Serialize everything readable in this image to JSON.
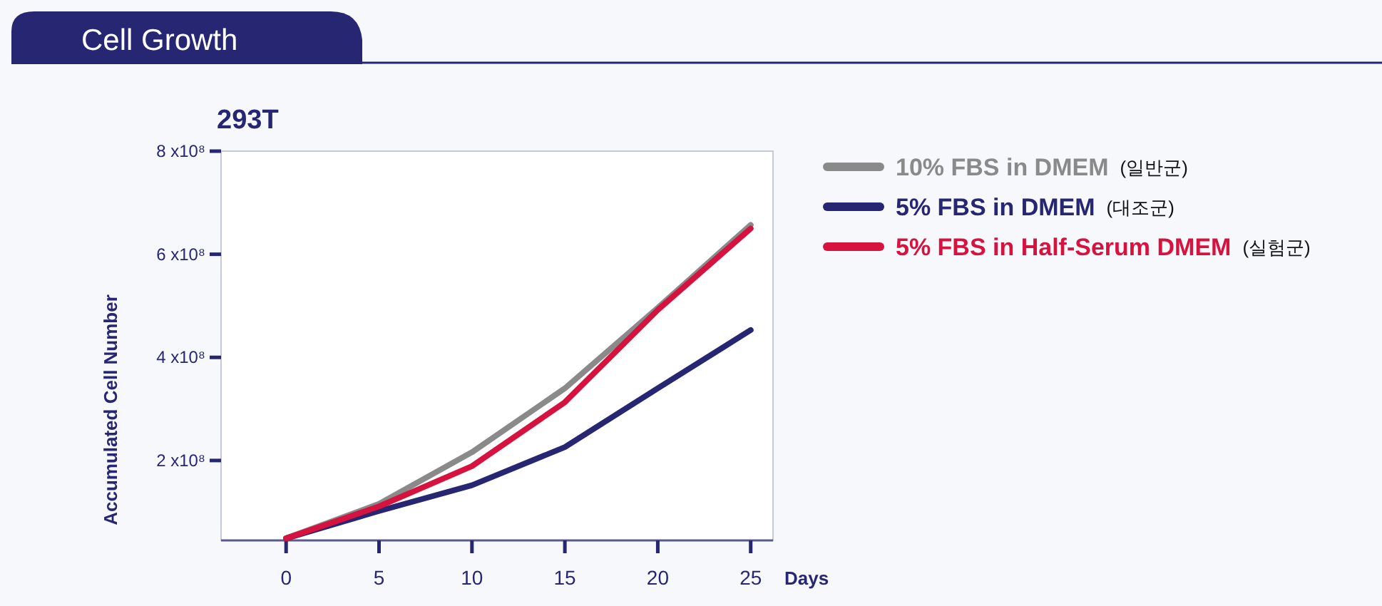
{
  "chart_data": {
    "type": "line",
    "title": "Cell Growth",
    "subtitle": "293T",
    "xlabel": "Days",
    "ylabel": "Accumulated Cell Number",
    "x": [
      0,
      5,
      10,
      15,
      20,
      25
    ],
    "series": [
      {
        "name": "10% FBS in DMEM (일반군)",
        "color": "#8a8a8a",
        "values": [
          49000000,
          116000000,
          216000000,
          340000000,
          496000000,
          657000000
        ]
      },
      {
        "name": "5% FBS in DMEM (대조군)",
        "color": "#262673",
        "values": [
          49000000,
          102000000,
          152000000,
          226000000,
          340000000,
          453000000
        ]
      },
      {
        "name": "5% FBS in Half-Serum DMEM (실험군)",
        "color": "#d6123f",
        "values": [
          49000000,
          111000000,
          189000000,
          313000000,
          492000000,
          650000000
        ]
      }
    ],
    "xlim": [
      -3.5,
      26.2
    ],
    "xticks": [
      0,
      5,
      10,
      15,
      20,
      25
    ],
    "ylim": [
      45000000,
      800000000
    ],
    "yticks": [
      {
        "value": 200000000,
        "label": "2 x10⁸"
      },
      {
        "value": 400000000,
        "label": "4 x10⁸"
      },
      {
        "value": 600000000,
        "label": "6 x10⁸"
      },
      {
        "value": 800000000,
        "label": "8 x10⁸"
      }
    ],
    "grid": false,
    "legend": "right"
  }
}
